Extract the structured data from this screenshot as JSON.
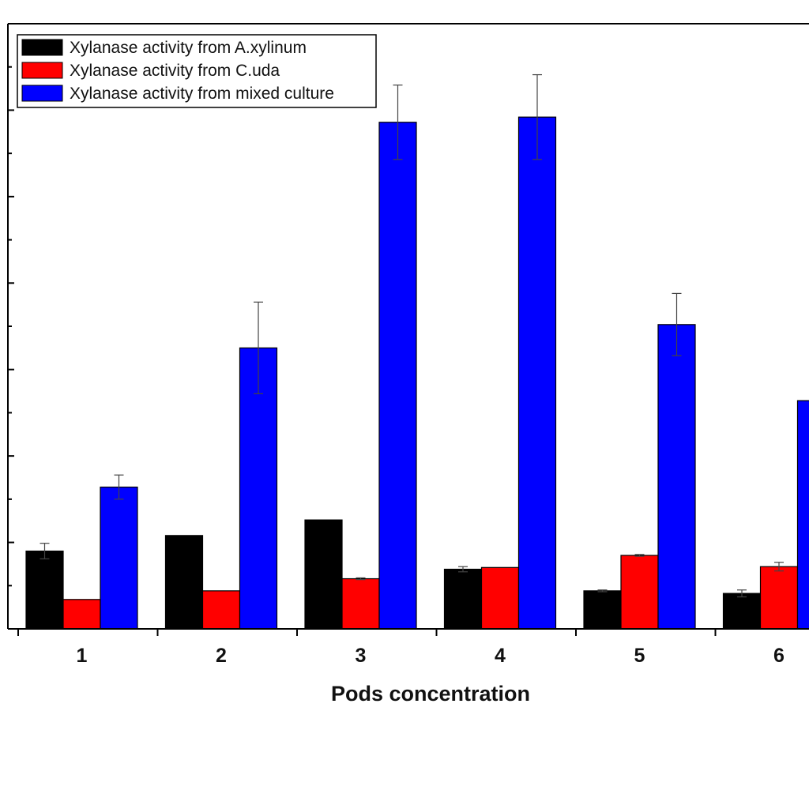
{
  "chart_data": {
    "type": "bar",
    "xlabel": "Pods concentration",
    "ylabel": "",
    "categories": [
      "1",
      "2",
      "3",
      "4",
      "5",
      "6"
    ],
    "ylim": [
      0,
      7
    ],
    "grid": false,
    "legend_position": "top-left",
    "series": [
      {
        "name": "Xylanase activity from A.xylinum",
        "color": "#000000",
        "values": [
          0.9,
          1.08,
          1.26,
          0.69,
          0.44,
          0.41
        ],
        "errors": [
          0.09,
          0.0,
          0.0,
          0.03,
          0.01,
          0.04
        ]
      },
      {
        "name": "Xylanase activity from C.uda",
        "color": "#ff0000",
        "values": [
          0.34,
          0.44,
          0.58,
          0.71,
          0.85,
          0.72
        ],
        "errors": [
          0.0,
          0.0,
          0.01,
          0.0,
          0.01,
          0.05
        ]
      },
      {
        "name": "Xylanase activity from mixed culture",
        "color": "#0000ff",
        "values": [
          1.64,
          3.25,
          5.86,
          5.92,
          3.52,
          2.64
        ],
        "errors": [
          0.14,
          0.53,
          0.43,
          0.49,
          0.36,
          0.0
        ]
      }
    ]
  }
}
